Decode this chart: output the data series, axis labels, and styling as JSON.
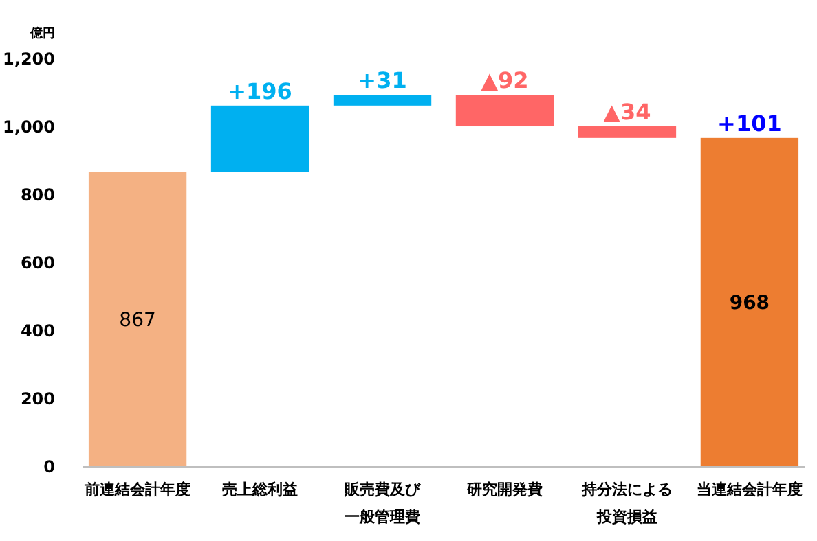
{
  "chart_data": {
    "type": "bar",
    "ylabel": "億円",
    "categories": [
      "前連結会計年度",
      "売上総利益",
      "販売費及び一般管理費",
      "研究開発費",
      "持分法による投資損益",
      "当連結会計年度"
    ],
    "values": [
      867,
      196,
      31,
      -92,
      -34,
      968
    ],
    "base": [
      0,
      867,
      1063,
      1094,
      1002,
      0
    ],
    "colors": [
      "#f4b183",
      "#00b0f0",
      "#00b0f0",
      "#ff6666",
      "#ff6666",
      "#ed7d31"
    ],
    "value_labels": [
      "867",
      "+196",
      "+31",
      "▲92",
      "▲34",
      "968"
    ],
    "ylim": [
      0,
      1200
    ],
    "yticks": [
      0,
      200,
      400,
      600,
      800,
      {
        "value": 1000,
        "label": "1,000"
      },
      {
        "value": 1200,
        "label": "1,200"
      }
    ],
    "grid": false,
    "annotations": [
      {
        "text": "+101",
        "x": "当連結会計年度",
        "y": 968
      }
    ]
  }
}
